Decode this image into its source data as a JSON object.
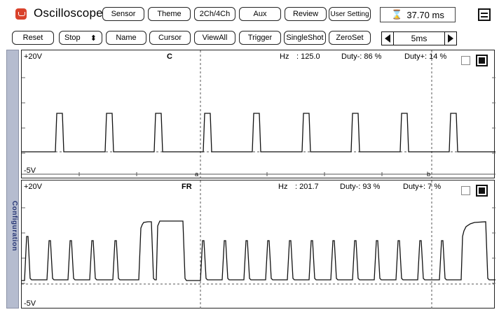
{
  "app": {
    "title": "Oscilloscope"
  },
  "top_buttons": [
    {
      "label": "Sensor",
      "name": "sensor-button"
    },
    {
      "label": "Theme",
      "name": "theme-button"
    },
    {
      "label": "2Ch/4Ch",
      "name": "channels-button"
    },
    {
      "label": "Aux",
      "name": "aux-button"
    },
    {
      "label": "Review",
      "name": "review-button"
    },
    {
      "label": "User Setting",
      "name": "user-setting-button"
    }
  ],
  "timer": {
    "value": "37.70 ms"
  },
  "toolbar": [
    {
      "label": "Reset",
      "name": "reset-button"
    },
    {
      "label": "Stop",
      "name": "stop-button",
      "spinner": "⬍"
    },
    {
      "label": "Name",
      "name": "name-button"
    },
    {
      "label": "Cursor",
      "name": "cursor-button"
    },
    {
      "label": "ViewAll",
      "name": "viewall-button"
    },
    {
      "label": "Trigger",
      "name": "trigger-button"
    },
    {
      "label": "SingleShot",
      "name": "singleshot-button"
    },
    {
      "label": "ZeroSet",
      "name": "zeroset-button"
    }
  ],
  "timebase": {
    "value": "5ms"
  },
  "sidebar": {
    "label": "Configuration"
  },
  "channels": [
    {
      "name": "C",
      "ymax": "+20V",
      "ymin": "-5V",
      "hz_label": "Hz",
      "hz_value": ": 125.0",
      "duty_minus": "Duty-: 86 %",
      "duty_plus": "Duty+: 14 %",
      "cursor_a": "a",
      "cursor_b": "b"
    },
    {
      "name": "FR",
      "ymax": "+20V",
      "ymin": "-5V",
      "hz_label": "Hz",
      "hz_value": ": 201.7",
      "duty_minus": "Duty-: 93 %",
      "duty_plus": "Duty+: 7 %"
    }
  ],
  "colors": {
    "accent": "#d9422b",
    "sidebar": "#b5bccf",
    "timer_icon": "#e4a500"
  }
}
